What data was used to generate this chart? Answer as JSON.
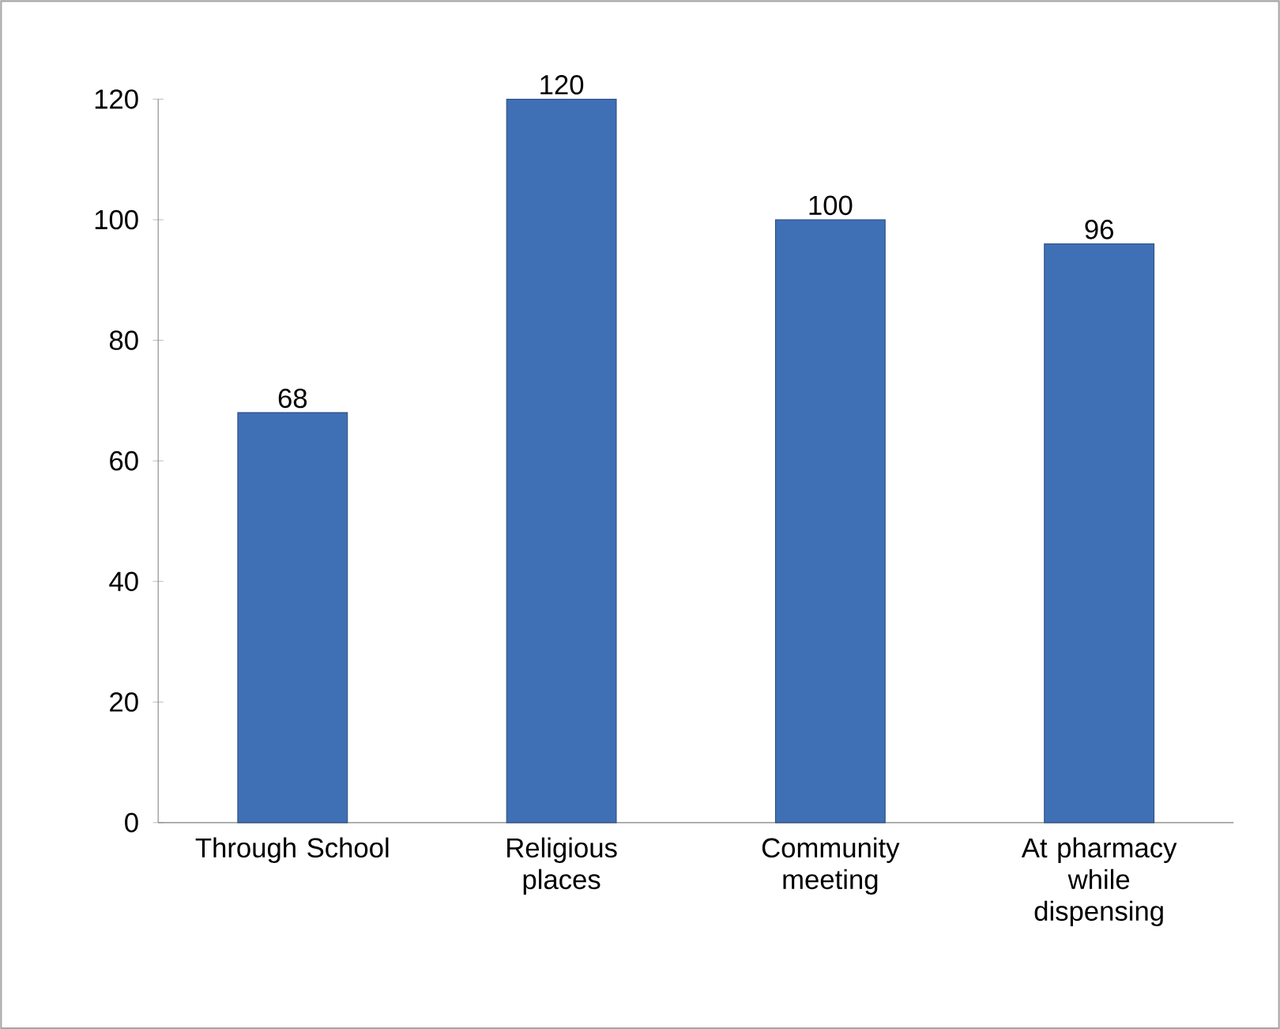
{
  "chart_data": {
    "type": "bar",
    "categories": [
      "Through School",
      "Religious places",
      "Community meeting",
      "At pharmacy while dispensing"
    ],
    "values": [
      68,
      120,
      100,
      96
    ],
    "color": "#3f6fb5",
    "ylim": [
      0,
      120
    ],
    "yticks": [
      0,
      20,
      40,
      60,
      80,
      100,
      120
    ],
    "data_labels": true,
    "grid": false
  }
}
